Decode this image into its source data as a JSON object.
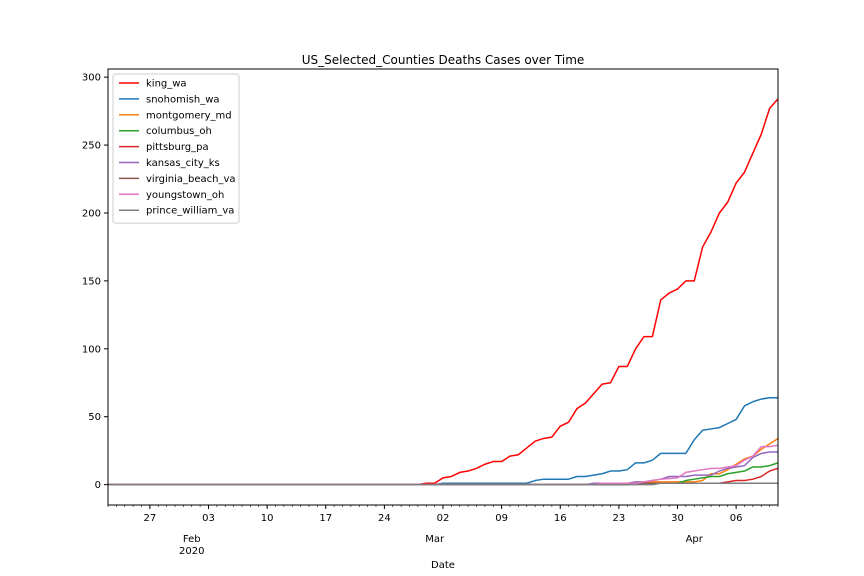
{
  "chart_data": {
    "type": "line",
    "title": "US_Selected_Counties Deaths Cases over Time",
    "xlabel": "Date",
    "ylabel": "",
    "x_start": "2020-01-22",
    "x_end": "2020-04-11",
    "ylim": [
      -15,
      306
    ],
    "yticks": [
      0,
      50,
      100,
      150,
      200,
      250,
      300
    ],
    "grid": false,
    "legend_position": "upper-left",
    "x_day_ticks": [
      {
        "date": "2020-01-27",
        "label": "27"
      },
      {
        "date": "2020-02-03",
        "label": "03"
      },
      {
        "date": "2020-02-10",
        "label": "10"
      },
      {
        "date": "2020-02-17",
        "label": "17"
      },
      {
        "date": "2020-02-24",
        "label": "24"
      },
      {
        "date": "2020-03-02",
        "label": "02"
      },
      {
        "date": "2020-03-09",
        "label": "09"
      },
      {
        "date": "2020-03-16",
        "label": "16"
      },
      {
        "date": "2020-03-23",
        "label": "23"
      },
      {
        "date": "2020-03-30",
        "label": "30"
      },
      {
        "date": "2020-04-06",
        "label": "06"
      }
    ],
    "x_month_ticks": [
      {
        "date": "2020-02-01",
        "label": "Feb",
        "sublabel": "2020"
      },
      {
        "date": "2020-03-01",
        "label": "Mar",
        "sublabel": ""
      },
      {
        "date": "2020-04-01",
        "label": "Apr",
        "sublabel": ""
      }
    ],
    "series": [
      {
        "name": "king_wa",
        "color": "#ff0000",
        "points": [
          [
            "2020-01-22",
            0
          ],
          [
            "2020-02-28",
            0
          ],
          [
            "2020-02-29",
            1
          ],
          [
            "2020-03-01",
            1
          ],
          [
            "2020-03-02",
            5
          ],
          [
            "2020-03-03",
            6
          ],
          [
            "2020-03-04",
            9
          ],
          [
            "2020-03-05",
            10
          ],
          [
            "2020-03-06",
            12
          ],
          [
            "2020-03-07",
            15
          ],
          [
            "2020-03-08",
            17
          ],
          [
            "2020-03-09",
            17
          ],
          [
            "2020-03-10",
            21
          ],
          [
            "2020-03-11",
            22
          ],
          [
            "2020-03-12",
            27
          ],
          [
            "2020-03-13",
            32
          ],
          [
            "2020-03-14",
            34
          ],
          [
            "2020-03-15",
            35
          ],
          [
            "2020-03-16",
            43
          ],
          [
            "2020-03-17",
            46
          ],
          [
            "2020-03-18",
            56
          ],
          [
            "2020-03-19",
            60
          ],
          [
            "2020-03-20",
            67
          ],
          [
            "2020-03-21",
            74
          ],
          [
            "2020-03-22",
            75
          ],
          [
            "2020-03-23",
            87
          ],
          [
            "2020-03-24",
            87
          ],
          [
            "2020-03-25",
            100
          ],
          [
            "2020-03-26",
            109
          ],
          [
            "2020-03-27",
            109
          ],
          [
            "2020-03-28",
            136
          ],
          [
            "2020-03-29",
            141
          ],
          [
            "2020-03-30",
            144
          ],
          [
            "2020-03-31",
            150
          ],
          [
            "2020-04-01",
            150
          ],
          [
            "2020-04-02",
            175
          ],
          [
            "2020-04-03",
            186
          ],
          [
            "2020-04-04",
            200
          ],
          [
            "2020-04-05",
            208
          ],
          [
            "2020-04-06",
            222
          ],
          [
            "2020-04-07",
            230
          ],
          [
            "2020-04-08",
            244
          ],
          [
            "2020-04-09",
            258
          ],
          [
            "2020-04-10",
            277
          ],
          [
            "2020-04-11",
            284
          ],
          [
            "2020-04-12",
            292
          ]
        ]
      },
      {
        "name": "snohomish_wa",
        "color": "#1f77b4",
        "points": [
          [
            "2020-01-22",
            0
          ],
          [
            "2020-03-01",
            0
          ],
          [
            "2020-03-02",
            1
          ],
          [
            "2020-03-12",
            1
          ],
          [
            "2020-03-13",
            3
          ],
          [
            "2020-03-14",
            4
          ],
          [
            "2020-03-17",
            4
          ],
          [
            "2020-03-18",
            6
          ],
          [
            "2020-03-19",
            6
          ],
          [
            "2020-03-20",
            7
          ],
          [
            "2020-03-21",
            8
          ],
          [
            "2020-03-22",
            10
          ],
          [
            "2020-03-23",
            10
          ],
          [
            "2020-03-24",
            11
          ],
          [
            "2020-03-25",
            16
          ],
          [
            "2020-03-26",
            16
          ],
          [
            "2020-03-27",
            18
          ],
          [
            "2020-03-28",
            23
          ],
          [
            "2020-03-31",
            23
          ],
          [
            "2020-04-01",
            33
          ],
          [
            "2020-04-02",
            40
          ],
          [
            "2020-04-03",
            41
          ],
          [
            "2020-04-04",
            42
          ],
          [
            "2020-04-05",
            45
          ],
          [
            "2020-04-06",
            48
          ],
          [
            "2020-04-07",
            58
          ],
          [
            "2020-04-08",
            61
          ],
          [
            "2020-04-09",
            63
          ],
          [
            "2020-04-10",
            64
          ],
          [
            "2020-04-11",
            64
          ],
          [
            "2020-04-12",
            68
          ],
          [
            "2020-04-13",
            69
          ]
        ]
      },
      {
        "name": "montgomery_md",
        "color": "#ff7f0e",
        "points": [
          [
            "2020-01-22",
            0
          ],
          [
            "2020-03-20",
            0
          ],
          [
            "2020-03-21",
            1
          ],
          [
            "2020-03-26",
            1
          ],
          [
            "2020-03-27",
            2
          ],
          [
            "2020-04-01",
            2
          ],
          [
            "2020-04-02",
            3
          ],
          [
            "2020-04-03",
            8
          ],
          [
            "2020-04-04",
            8
          ],
          [
            "2020-04-05",
            11
          ],
          [
            "2020-04-06",
            15
          ],
          [
            "2020-04-07",
            19
          ],
          [
            "2020-04-08",
            21
          ],
          [
            "2020-04-09",
            26
          ],
          [
            "2020-04-10",
            30
          ],
          [
            "2020-04-11",
            34
          ],
          [
            "2020-04-12",
            36
          ],
          [
            "2020-04-13",
            42
          ]
        ]
      },
      {
        "name": "columbus_oh",
        "color": "#2ca02c",
        "points": [
          [
            "2020-01-22",
            0
          ],
          [
            "2020-03-24",
            0
          ],
          [
            "2020-03-25",
            1
          ],
          [
            "2020-03-30",
            1
          ],
          [
            "2020-03-31",
            3
          ],
          [
            "2020-04-01",
            4
          ],
          [
            "2020-04-02",
            5
          ],
          [
            "2020-04-03",
            6
          ],
          [
            "2020-04-04",
            6
          ],
          [
            "2020-04-05",
            8
          ],
          [
            "2020-04-06",
            9
          ],
          [
            "2020-04-07",
            10
          ],
          [
            "2020-04-08",
            13
          ],
          [
            "2020-04-09",
            13
          ],
          [
            "2020-04-10",
            14
          ],
          [
            "2020-04-11",
            16
          ],
          [
            "2020-04-13",
            16
          ]
        ]
      },
      {
        "name": "pittsburg_pa",
        "color": "#d62728",
        "points": [
          [
            "2020-01-22",
            0
          ],
          [
            "2020-03-24",
            0
          ],
          [
            "2020-03-25",
            1
          ],
          [
            "2020-04-04",
            1
          ],
          [
            "2020-04-05",
            2
          ],
          [
            "2020-04-06",
            3
          ],
          [
            "2020-04-07",
            3
          ],
          [
            "2020-04-08",
            4
          ],
          [
            "2020-04-09",
            6
          ],
          [
            "2020-04-10",
            10
          ],
          [
            "2020-04-11",
            12
          ],
          [
            "2020-04-12",
            16
          ],
          [
            "2020-04-13",
            18
          ],
          [
            "2020-04-14",
            19
          ],
          [
            "2020-04-15",
            19
          ]
        ]
      },
      {
        "name": "kansas_city_ks",
        "color": "#9467bd",
        "points": [
          [
            "2020-01-22",
            0
          ],
          [
            "2020-03-19",
            0
          ],
          [
            "2020-03-20",
            1
          ],
          [
            "2020-03-24",
            1
          ],
          [
            "2020-03-25",
            2
          ],
          [
            "2020-03-26",
            2
          ],
          [
            "2020-03-27",
            3
          ],
          [
            "2020-03-28",
            4
          ],
          [
            "2020-03-29",
            6
          ],
          [
            "2020-03-31",
            6
          ],
          [
            "2020-04-01",
            7
          ],
          [
            "2020-04-03",
            7
          ],
          [
            "2020-04-04",
            10
          ],
          [
            "2020-04-05",
            12
          ],
          [
            "2020-04-06",
            13
          ],
          [
            "2020-04-07",
            14
          ],
          [
            "2020-04-08",
            20
          ],
          [
            "2020-04-09",
            23
          ],
          [
            "2020-04-10",
            24
          ],
          [
            "2020-04-11",
            24
          ],
          [
            "2020-04-12",
            30
          ],
          [
            "2020-04-13",
            31
          ]
        ]
      },
      {
        "name": "virginia_beach_va",
        "color": "#8c564b",
        "points": [
          [
            "2020-01-22",
            0
          ],
          [
            "2020-03-22",
            0
          ],
          [
            "2020-03-23",
            1
          ],
          [
            "2020-04-13",
            1
          ]
        ]
      },
      {
        "name": "youngstown_oh",
        "color": "#e377c2",
        "points": [
          [
            "2020-01-22",
            0
          ],
          [
            "2020-03-20",
            0
          ],
          [
            "2020-03-21",
            1
          ],
          [
            "2020-03-25",
            1
          ],
          [
            "2020-03-26",
            2
          ],
          [
            "2020-03-27",
            3
          ],
          [
            "2020-03-28",
            4
          ],
          [
            "2020-03-30",
            5
          ],
          [
            "2020-03-31",
            9
          ],
          [
            "2020-04-01",
            10
          ],
          [
            "2020-04-02",
            11
          ],
          [
            "2020-04-03",
            12
          ],
          [
            "2020-04-04",
            12
          ],
          [
            "2020-04-05",
            13
          ],
          [
            "2020-04-06",
            14
          ],
          [
            "2020-04-07",
            18
          ],
          [
            "2020-04-08",
            21
          ],
          [
            "2020-04-09",
            28
          ],
          [
            "2020-04-10",
            28
          ],
          [
            "2020-04-11",
            29
          ],
          [
            "2020-04-12",
            29
          ],
          [
            "2020-04-13",
            29
          ]
        ]
      },
      {
        "name": "prince_william_va",
        "color": "#7f7f7f",
        "points": [
          [
            "2020-01-22",
            0
          ],
          [
            "2020-03-27",
            0
          ],
          [
            "2020-03-28",
            1
          ],
          [
            "2020-04-13",
            1
          ]
        ]
      }
    ]
  }
}
